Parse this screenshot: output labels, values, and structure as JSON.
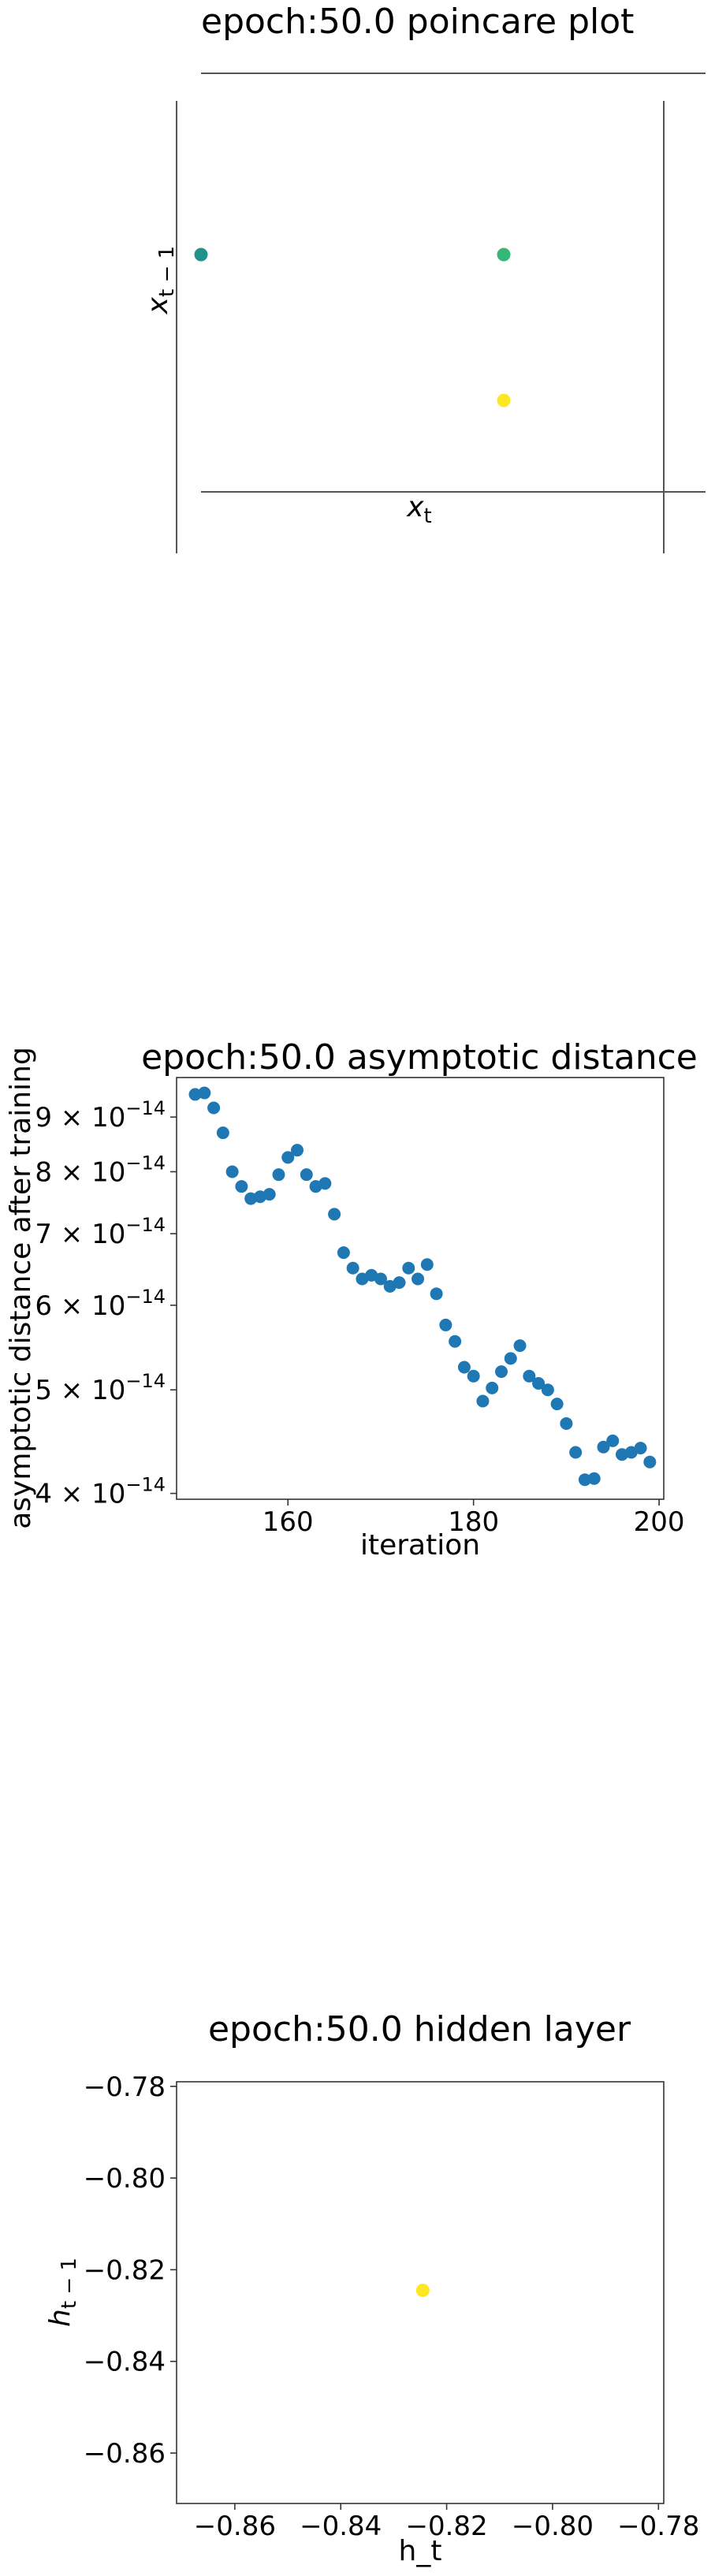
{
  "chart_data": [
    {
      "type": "scatter",
      "title": "epoch:50.0 poincare plot",
      "xlabel": "x_t",
      "ylabel": "x_{t-1}",
      "grid": false,
      "legend": "none",
      "points": [
        {
          "x": 0.0,
          "y": 0.5,
          "color": "#21918c"
        },
        {
          "x": 0.5,
          "y": 0.5,
          "color": "#35b779"
        },
        {
          "x": 0.5,
          "y": 0.0,
          "color": "#fde725"
        }
      ]
    },
    {
      "type": "scatter",
      "title": "epoch:50.0 asymptotic distance",
      "xlabel": "iteration",
      "ylabel": "asymptotic distance after training",
      "yscale": "log",
      "xlim": [
        148,
        200.5
      ],
      "ylim": [
        3.95e-14,
        9.8e-14
      ],
      "xticks": [
        160,
        180,
        200
      ],
      "xtick_labels": [
        "160",
        "180",
        "200"
      ],
      "yticks": [
        9e-14,
        8e-14,
        7e-14,
        6e-14,
        5e-14,
        4e-14
      ],
      "ytick_mantissas": [
        "9",
        "8",
        "7",
        "6",
        "5",
        "4"
      ],
      "ytick_times": "×",
      "ytick_base": "10",
      "ytick_exp": "−14",
      "grid": false,
      "legend": "none",
      "color": "#1f77b4",
      "x": [
        150,
        151,
        152,
        153,
        154,
        155,
        156,
        157,
        158,
        159,
        160,
        161,
        162,
        163,
        164,
        165,
        166,
        167,
        168,
        169,
        170,
        171,
        172,
        173,
        174,
        175,
        176,
        177,
        178,
        179,
        180,
        181,
        182,
        183,
        184,
        185,
        186,
        187,
        188,
        189,
        190,
        191,
        192,
        193,
        194,
        195,
        196,
        197,
        198,
        199
      ],
      "y": [
        9.45e-14,
        9.48e-14,
        9.18e-14,
        8.7e-14,
        8e-14,
        7.75e-14,
        7.55e-14,
        7.58e-14,
        7.62e-14,
        7.95e-14,
        8.25e-14,
        8.38e-14,
        7.95e-14,
        7.75e-14,
        7.8e-14,
        7.3e-14,
        6.72e-14,
        6.5e-14,
        6.35e-14,
        6.4e-14,
        6.35e-14,
        6.25e-14,
        6.3e-14,
        6.5e-14,
        6.35e-14,
        6.55e-14,
        6.15e-14,
        5.75e-14,
        5.55e-14,
        5.25e-14,
        5.15e-14,
        4.88e-14,
        5.02e-14,
        5.2e-14,
        5.35e-14,
        5.5e-14,
        5.15e-14,
        5.07e-14,
        5e-14,
        4.85e-14,
        4.65e-14,
        4.37e-14,
        4.12e-14,
        4.13e-14,
        4.42e-14,
        4.48e-14,
        4.35e-14,
        4.37e-14,
        4.41e-14,
        4.28e-14
      ]
    },
    {
      "type": "scatter",
      "title": "epoch:50.0 hidden layer",
      "xlabel": "h_t",
      "ylabel": "h_{t-1}",
      "xlim": [
        -0.871,
        -0.779
      ],
      "ylim": [
        -0.871,
        -0.779
      ],
      "xticks": [
        -0.86,
        -0.84,
        -0.82,
        -0.8,
        -0.78
      ],
      "xtick_labels": [
        "−0.86",
        "−0.84",
        "−0.82",
        "−0.80",
        "−0.78"
      ],
      "yticks": [
        -0.78,
        -0.8,
        -0.82,
        -0.84,
        -0.86
      ],
      "ytick_labels": [
        "−0.78",
        "−0.80",
        "−0.82",
        "−0.84",
        "−0.86"
      ],
      "grid": false,
      "legend": "none",
      "points": [
        {
          "x": -0.8245,
          "y": -0.8245,
          "color": "#fde725"
        }
      ]
    }
  ]
}
